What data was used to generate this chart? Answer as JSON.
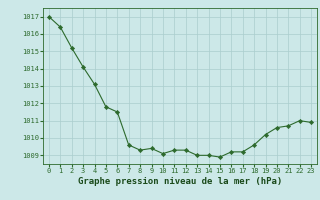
{
  "x": [
    0,
    1,
    2,
    3,
    4,
    5,
    6,
    7,
    8,
    9,
    10,
    11,
    12,
    13,
    14,
    15,
    16,
    17,
    18,
    19,
    20,
    21,
    22,
    23
  ],
  "y": [
    1017.0,
    1016.4,
    1015.2,
    1014.1,
    1013.1,
    1011.8,
    1011.5,
    1009.6,
    1009.3,
    1009.4,
    1009.1,
    1009.3,
    1009.3,
    1009.0,
    1009.0,
    1008.9,
    1009.2,
    1009.2,
    1009.6,
    1010.2,
    1010.6,
    1010.7,
    1011.0,
    1010.9
  ],
  "ylim": [
    1008.5,
    1017.5
  ],
  "yticks": [
    1009,
    1010,
    1011,
    1012,
    1013,
    1014,
    1015,
    1016,
    1017
  ],
  "xlabel": "Graphe pression niveau de la mer (hPa)",
  "line_color": "#2d6a2d",
  "marker_color": "#2d6a2d",
  "bg_color": "#cce8e8",
  "grid_color": "#aacece",
  "tick_label_color": "#2d6a2d",
  "xlabel_color": "#1a4a1a"
}
